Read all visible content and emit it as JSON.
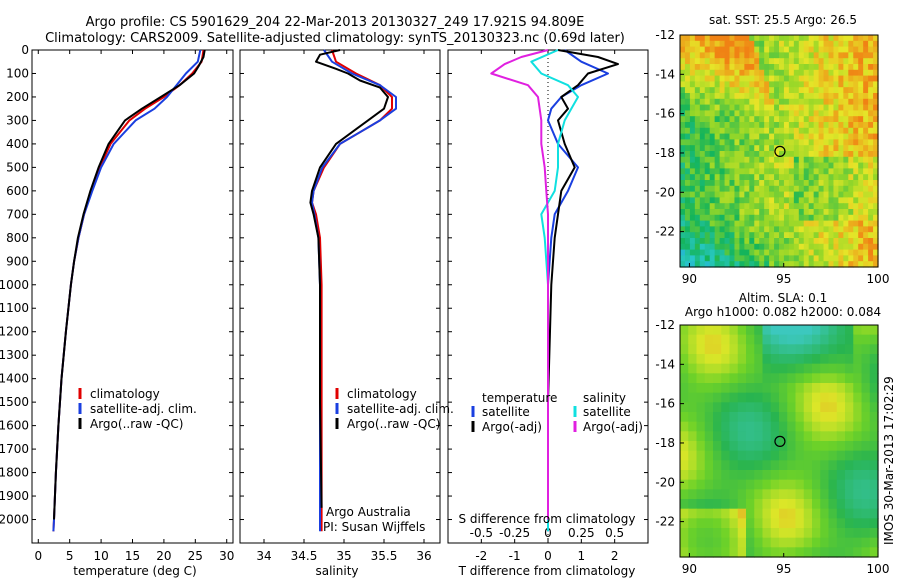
{
  "header": {
    "line1": "Argo profile: CS 5901629_204 22-Mar-2013 20130327_249 17.921S 94.809E",
    "line2": "Climatology: CARS2009. Satellite-adjusted climatology: synTS_20130323.nc (0.69d later)"
  },
  "colors": {
    "climatology": "#e00000",
    "satellite": "#1a3fe0",
    "argo": "#000000",
    "salinity_satellite": "#10e0e0",
    "salinity_argo": "#e020e0"
  },
  "chart_data": [
    {
      "type": "line",
      "name": "temperature_profile",
      "xlabel": "temperature (deg C)",
      "ylabel": "",
      "xlim": [
        -1,
        31
      ],
      "ylim": [
        2100,
        0
      ],
      "xticks": [
        0,
        5,
        10,
        15,
        20,
        25,
        30
      ],
      "yticks": [
        0,
        100,
        200,
        300,
        400,
        500,
        600,
        700,
        800,
        900,
        1000,
        1100,
        1200,
        1300,
        1400,
        1500,
        1600,
        1700,
        1800,
        1900,
        2000
      ],
      "legend": [
        "climatology",
        "satellite-adj. clim.",
        "Argo(..raw -QC)"
      ],
      "series": [
        {
          "name": "climatology",
          "color_key": "climatology",
          "depth": [
            0,
            50,
            100,
            150,
            200,
            250,
            300,
            400,
            500,
            600,
            700,
            800,
            900,
            1000,
            1200,
            1400,
            1600,
            1800,
            2000,
            2050
          ],
          "values": [
            26.3,
            26.0,
            24.5,
            22.5,
            20.0,
            17.0,
            14.5,
            11.5,
            9.8,
            8.5,
            7.3,
            6.4,
            5.7,
            5.2,
            4.4,
            3.7,
            3.2,
            2.8,
            2.5,
            2.4
          ]
        },
        {
          "name": "satellite-adj. clim.",
          "color_key": "satellite",
          "depth": [
            0,
            50,
            100,
            150,
            200,
            250,
            300,
            400,
            500,
            600,
            700,
            800,
            900,
            1000,
            1200,
            1400,
            1600,
            1800,
            2000,
            2050
          ],
          "values": [
            25.8,
            25.4,
            23.5,
            22.0,
            20.5,
            18.5,
            15.5,
            12.0,
            10.0,
            8.6,
            7.3,
            6.4,
            5.7,
            5.2,
            4.4,
            3.7,
            3.2,
            2.8,
            2.5,
            2.4
          ]
        },
        {
          "name": "Argo(..raw -QC)",
          "color_key": "argo",
          "depth": [
            0,
            30,
            70,
            100,
            150,
            200,
            250,
            300,
            400,
            500,
            600,
            700,
            800,
            900,
            1000,
            1200,
            1400,
            1600,
            1800,
            2000
          ],
          "values": [
            26.5,
            26.3,
            25.5,
            24.8,
            22.5,
            19.5,
            16.5,
            13.8,
            11.2,
            9.6,
            8.3,
            7.2,
            6.3,
            5.7,
            5.2,
            4.4,
            3.7,
            3.2,
            2.8,
            2.5
          ]
        }
      ],
      "annotations": []
    },
    {
      "type": "line",
      "name": "salinity_profile",
      "xlabel": "salinity",
      "xlim": [
        33.7,
        36.2
      ],
      "ylim": [
        2100,
        0
      ],
      "xticks": [
        34,
        34.5,
        35,
        35.5,
        36
      ],
      "legend": [
        "climatology",
        "satellite-adj. clim.",
        "Argo(..raw -QC)"
      ],
      "series": [
        {
          "name": "climatology",
          "color_key": "climatology",
          "depth": [
            0,
            50,
            100,
            150,
            200,
            250,
            300,
            350,
            400,
            500,
            600,
            650,
            700,
            800,
            1000,
            1500,
            2050
          ],
          "values": [
            34.85,
            34.9,
            35.15,
            35.45,
            35.6,
            35.6,
            35.45,
            35.2,
            34.95,
            34.75,
            34.62,
            34.6,
            34.65,
            34.7,
            34.72,
            34.72,
            34.72
          ]
        },
        {
          "name": "satellite-adj. clim.",
          "color_key": "satellite",
          "depth": [
            0,
            50,
            100,
            150,
            200,
            250,
            300,
            350,
            400,
            500,
            600,
            650,
            700,
            800,
            1000,
            1500,
            2050
          ],
          "values": [
            34.75,
            34.85,
            35.1,
            35.45,
            35.65,
            35.65,
            35.45,
            35.2,
            34.95,
            34.73,
            34.62,
            34.6,
            34.63,
            34.68,
            34.7,
            34.7,
            34.7
          ]
        },
        {
          "name": "Argo(..raw -QC)",
          "color_key": "argo",
          "depth": [
            0,
            20,
            50,
            80,
            100,
            130,
            160,
            200,
            250,
            300,
            400,
            500,
            600,
            650,
            700,
            800,
            1000,
            1500,
            1950
          ],
          "values": [
            34.95,
            34.7,
            34.65,
            34.9,
            35.05,
            35.2,
            35.45,
            35.55,
            35.5,
            35.3,
            34.9,
            34.7,
            34.6,
            34.58,
            34.62,
            34.68,
            34.7,
            34.7,
            34.72
          ]
        }
      ],
      "annotations": [
        "Argo Australia",
        "PI: Susan Wijffels"
      ]
    },
    {
      "type": "line",
      "name": "difference_profile",
      "xlabel": "T difference from climatology",
      "xlabel_top": "S difference from climatology",
      "xlim": [
        -3,
        3
      ],
      "ylim": [
        2100,
        0
      ],
      "xticks": [
        -2,
        -1,
        0,
        1,
        2
      ],
      "xtick_labels_S": [
        "-0.5",
        "-0.25",
        "0",
        "0.25",
        "0.5"
      ],
      "xticks_S_pos": [
        -2,
        -1,
        0,
        1,
        2
      ],
      "legend_temperature_title": "temperature",
      "legend_salinity_title": "salinity",
      "legend_temperature": [
        "satellite",
        "Argo(-adj)"
      ],
      "legend_salinity": [
        "satellite",
        "Argo(-adj)"
      ],
      "series": [
        {
          "name": "temperature satellite",
          "color_key": "satellite",
          "depth": [
            0,
            50,
            100,
            150,
            200,
            250,
            300,
            400,
            500,
            600,
            650,
            700,
            800,
            1000,
            1500,
            2050
          ],
          "values": [
            0.5,
            1.0,
            1.8,
            1.0,
            0.4,
            0.1,
            0.0,
            0.3,
            0.9,
            0.6,
            0.4,
            0.2,
            0.1,
            0.0,
            0.0,
            0.0
          ]
        },
        {
          "name": "temperature Argo(-adj)",
          "color_key": "argo",
          "depth": [
            0,
            30,
            60,
            100,
            150,
            200,
            250,
            300,
            400,
            500,
            600,
            700,
            800,
            1000,
            1500,
            2000
          ],
          "values": [
            0.3,
            1.5,
            2.1,
            1.2,
            0.9,
            0.4,
            0.6,
            0.3,
            0.5,
            0.8,
            0.4,
            0.3,
            0.2,
            0.1,
            0.0,
            0.0
          ]
        },
        {
          "name": "salinity satellite",
          "color_key": "salinity_satellite",
          "depth": [
            0,
            50,
            100,
            150,
            200,
            250,
            300,
            400,
            500,
            600,
            700,
            800,
            1000,
            1500,
            2050
          ],
          "values": [
            0.3,
            -0.5,
            -0.2,
            0.6,
            0.9,
            0.7,
            0.5,
            0.3,
            0.3,
            0.2,
            -0.2,
            -0.1,
            0.0,
            0.0,
            0.0
          ]
        },
        {
          "name": "salinity Argo(-adj)",
          "color_key": "salinity_argo",
          "depth": [
            0,
            30,
            60,
            100,
            150,
            200,
            300,
            400,
            500,
            600,
            700,
            800,
            1000,
            1500,
            2000
          ],
          "values": [
            0.0,
            -0.8,
            -1.3,
            -1.7,
            -0.6,
            -0.3,
            -0.2,
            -0.2,
            -0.1,
            -0.05,
            0.0,
            0.0,
            0.0,
            0.0,
            0.0
          ]
        }
      ]
    },
    {
      "type": "heatmap",
      "name": "sst_map",
      "title": "sat. SST: 25.5 Argo: 26.5",
      "xlim": [
        89.5,
        100
      ],
      "ylim": [
        -23.8,
        -12
      ],
      "xticks": [
        90,
        95,
        100
      ],
      "yticks": [
        -12,
        -14,
        -16,
        -18,
        -20,
        -22
      ],
      "marker": {
        "lon": 94.8,
        "lat": -17.92
      }
    },
    {
      "type": "heatmap",
      "name": "sla_map",
      "title_line1": "Altim. SLA: 0.1",
      "title_line2": "Argo h1000: 0.082 h2000: 0.084",
      "xlim": [
        89.5,
        100
      ],
      "ylim": [
        -23.8,
        -12
      ],
      "xticks": [
        90,
        95,
        100
      ],
      "yticks": [
        -12,
        -14,
        -16,
        -18,
        -20,
        -22
      ],
      "marker": {
        "lon": 94.8,
        "lat": -17.92
      }
    }
  ],
  "footer": {
    "side_stamp": "IMOS 30-Mar-2013 17:02:29"
  }
}
